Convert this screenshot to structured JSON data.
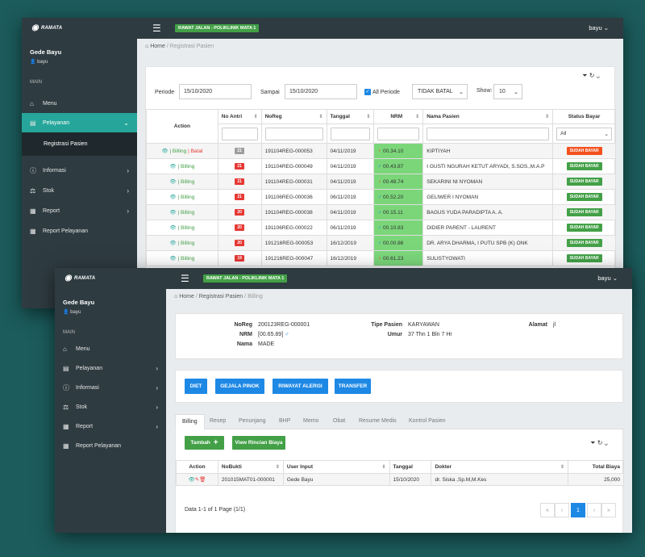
{
  "colors": {
    "sidebar": "#2e3b41",
    "accent": "#26a69a",
    "success": "#43a047",
    "primary": "#1e88e5",
    "danger": "#e53935",
    "warning": "#f4511e"
  },
  "app": {
    "logo_text": "RAMATA",
    "context_badge": "RAWAT JALAN - POLIKLINIK MATA 1",
    "user_menu": "bayu ⌄"
  },
  "sidebar": {
    "user_name": "Gede Bayu",
    "user_id": "bayu",
    "section": "MAIN",
    "items": [
      {
        "label": "Menu",
        "icon": "home-icon"
      },
      {
        "label": "Pelayanan",
        "icon": "list-icon"
      },
      {
        "label": "Registrasi Pasien"
      },
      {
        "label": "Informasi",
        "icon": "info-icon"
      },
      {
        "label": "Stok",
        "icon": "scale-icon"
      },
      {
        "label": "Report",
        "icon": "report-icon"
      },
      {
        "label": "Report Pelayanan",
        "icon": "report-icon"
      }
    ]
  },
  "registrasi": {
    "breadcrumb": {
      "home": "Home",
      "current": "Registrasi Pasien"
    },
    "filter": {
      "periode_label": "Periode",
      "periode_value": "15/10/2020",
      "sampai_label": "Sampai",
      "sampai_value": "15/10/2020",
      "all_periode": "All Periode",
      "status_select": "TIDAK BATAL",
      "show_label": "Show:",
      "show_value": "10"
    },
    "columns": [
      "Action",
      "No Antri",
      "NoReg",
      "Tanggal",
      "NRM",
      "Nama Pasien",
      "Status Bayar"
    ],
    "status_filter": "All",
    "rows": [
      {
        "action": "| Billing | Batal",
        "no_antri": "21",
        "noreg": "191104REG-000053",
        "tanggal": "04/11/2019",
        "nrm": "00.34.10",
        "gender": "♀",
        "nama": "KIPTIYAH",
        "status": "SUDAH BAYAR"
      },
      {
        "action": "| Billing",
        "no_antri": "21",
        "noreg": "191104REG-000049",
        "tanggal": "04/11/2019",
        "nrm": "00.43.87",
        "gender": "♂",
        "nama": "I GUSTI NGURAH KETUT ARYADI, S.SOS.,M.A.P",
        "status": "SUDAH BAYAR"
      },
      {
        "action": "| Billing",
        "no_antri": "21",
        "noreg": "191104REG-000031",
        "tanggal": "04/11/2019",
        "nrm": "00.48.74",
        "gender": "♀",
        "nama": "SEKARINI NI NYOMAN",
        "status": "SUDAH BAYAR"
      },
      {
        "action": "| Billing",
        "no_antri": "21",
        "noreg": "191106REG-000036",
        "tanggal": "06/11/2019",
        "nrm": "00.52.20",
        "gender": "♂",
        "nama": "GELIWER I NYOMAN",
        "status": "SUDAH BAYAR"
      },
      {
        "action": "| Billing",
        "no_antri": "20",
        "noreg": "191104REG-000038",
        "tanggal": "04/11/2019",
        "nrm": "00.15.11",
        "gender": "♂",
        "nama": "BAGUS YUDA PARADIPTA A. A.",
        "status": "SUDAH BAYAR"
      },
      {
        "action": "| Billing",
        "no_antri": "20",
        "noreg": "191106REG-000022",
        "tanggal": "06/11/2019",
        "nrm": "00.10.83",
        "gender": "♂",
        "nama": "DIDIER PARENT - LAURENT",
        "status": "SUDAH BAYAR"
      },
      {
        "action": "| Billing",
        "no_antri": "20",
        "noreg": "191216REG-000053",
        "tanggal": "16/12/2019",
        "nrm": "00.00.86",
        "gender": "♂",
        "nama": "DR. ARYA DHARMA, I PUTU SPB (K) ONK",
        "status": "SUDAH BAYAR"
      },
      {
        "action": "| Billing",
        "no_antri": "19",
        "noreg": "191216REG-000047",
        "tanggal": "16/12/2019",
        "nrm": "00.61.23",
        "gender": "♀",
        "nama": "SULISTYOWATI",
        "status": "SUDAH BAYAR"
      }
    ]
  },
  "billing": {
    "breadcrumb": {
      "home": "Home",
      "parent": "Registrasi Pasien",
      "current": "Billing"
    },
    "patient": {
      "noreg_label": "NoReg",
      "noreg": "200123REG-000001",
      "nrm_label": "NRM",
      "nrm": "[00.65.89]",
      "nrm_gender": "♂",
      "nama_label": "Nama",
      "nama": "MADE",
      "tipe_label": "Tipe Pasien",
      "tipe": "KARYAWAN",
      "umur_label": "Umur",
      "umur": "37 Thn 1 Bln 7 Hr",
      "alamat_label": "Alamat",
      "alamat": "jl"
    },
    "actions": [
      "DIET",
      "GEJALA PINOK",
      "RIWAYAT ALERGI",
      "TRANSFER"
    ],
    "tabs": [
      "Billing",
      "Resep",
      "Penunjang",
      "BHP",
      "Memo",
      "Obat",
      "Resume Medis",
      "Kontrol Pasien"
    ],
    "tambah": "Tambah",
    "rincian": "View Rincian Biaya",
    "columns": [
      "Action",
      "NoBukti",
      "User Input",
      "Tanggal",
      "Dokter",
      "Total Biaya"
    ],
    "rows": [
      {
        "nobukti": "201015MAT01-000001",
        "user": "Gede Bayu",
        "tanggal": "15/10/2020",
        "dokter": "dr. Siska ,Sp.M,M.Kes",
        "total": "25,000"
      }
    ],
    "pager_info": "Data 1-1 of 1 Page (1/1)",
    "pager": [
      "«",
      "‹",
      "1",
      "›",
      "»"
    ]
  }
}
